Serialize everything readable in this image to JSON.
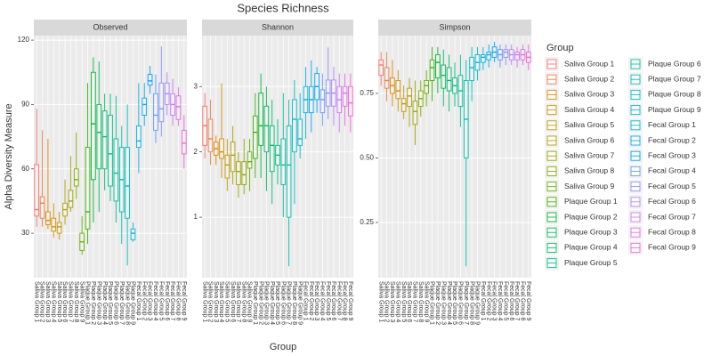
{
  "chart_data": {
    "type": "box",
    "title": "Species Richness",
    "xlabel": "Group",
    "ylabel": "Alpha Diversity Measure",
    "legend_title": "Group",
    "categories": [
      "Saliva Group 1",
      "Saliva Group 2",
      "Saliva Group 3",
      "Saliva Group 4",
      "Saliva Group 5",
      "Saliva Group 6",
      "Saliva Group 7",
      "Saliva Group 8",
      "Saliva Group 9",
      "Plaque Group 1",
      "Plaque Group 2",
      "Plaque Group 3",
      "Plaque Group 4",
      "Plaque Group 5",
      "Plaque Group 6",
      "Plaque Group 7",
      "Plaque Group 8",
      "Plaque Group 9",
      "Fecal Group 1",
      "Fecal Group 2",
      "Fecal Group 3",
      "Fecal Group 4",
      "Fecal Group 5",
      "Fecal Group 6",
      "Fecal Group 7",
      "Fecal Group 8",
      "Fecal Group 9"
    ],
    "colors": [
      "#F8766D",
      "#EE8043",
      "#E38900",
      "#D59100",
      "#C59900",
      "#B3A000",
      "#9FA600",
      "#87AC00",
      "#69B100",
      "#3BB600",
      "#00BA38",
      "#00BC59",
      "#00BE71",
      "#00C087",
      "#00C19C",
      "#00C0B0",
      "#00BEC3",
      "#00BBD4",
      "#00B5E4",
      "#00AEF2",
      "#00A5FE",
      "#619CFF",
      "#8F91FF",
      "#B385FF",
      "#D078F7",
      "#E66BE8",
      "#F564D6"
    ],
    "grid": true,
    "facets": [
      {
        "title": "Observed",
        "ylim": [
          9.3,
          122.1
        ],
        "yticks": [
          30,
          60,
          90,
          120
        ],
        "values": [
          [
            33,
            38,
            41,
            62,
            88
          ],
          [
            33,
            37,
            44,
            47,
            78
          ],
          [
            32,
            34,
            36,
            40,
            74
          ],
          [
            28,
            31,
            33,
            37,
            44
          ],
          [
            27,
            30,
            33,
            35,
            40
          ],
          [
            34,
            38,
            41,
            44,
            55
          ],
          [
            40,
            42,
            45,
            50,
            66
          ],
          [
            46,
            52,
            55,
            60,
            77
          ],
          [
            20,
            22,
            26,
            30,
            38
          ],
          [
            25,
            32,
            40,
            70,
            100
          ],
          [
            35,
            55,
            81,
            105,
            112
          ],
          [
            40,
            60,
            77,
            90,
            110
          ],
          [
            50,
            60,
            75,
            87,
            95
          ],
          [
            45,
            52,
            67,
            85,
            95
          ],
          [
            35,
            45,
            58,
            74,
            94
          ],
          [
            25,
            40,
            55,
            70,
            80
          ],
          [
            15,
            37,
            52,
            70,
            90
          ],
          [
            26,
            27,
            30,
            32,
            35
          ],
          [
            58,
            70,
            73,
            80,
            100
          ],
          [
            80,
            85,
            90,
            93,
            100
          ],
          [
            95,
            99,
            101,
            104,
            108
          ],
          [
            72,
            78,
            85,
            95,
            104
          ],
          [
            75,
            82,
            88,
            100,
            117
          ],
          [
            85,
            90,
            95,
            100,
            105
          ],
          [
            80,
            85,
            90,
            95,
            102
          ],
          [
            80,
            83,
            89,
            94,
            98
          ],
          [
            60,
            67,
            72,
            78,
            85
          ]
        ]
      },
      {
        "title": "Shannon",
        "ylim": [
          0.075,
          3.78
        ],
        "yticks": [
          1,
          2,
          3
        ],
        "values": [
          [
            1.9,
            2.1,
            2.4,
            2.7,
            2.9
          ],
          [
            1.8,
            2.0,
            2.2,
            2.5,
            2.8
          ],
          [
            1.8,
            1.95,
            2.05,
            2.15,
            2.25
          ],
          [
            1.6,
            1.9,
            2.0,
            2.2,
            3.05
          ],
          [
            1.4,
            1.6,
            1.8,
            1.95,
            2.2
          ],
          [
            1.5,
            1.7,
            1.95,
            2.15,
            2.4
          ],
          [
            1.3,
            1.5,
            1.7,
            1.85,
            2.0
          ],
          [
            1.35,
            1.5,
            1.65,
            1.85,
            2.2
          ],
          [
            1.4,
            1.75,
            1.85,
            2.0,
            2.2
          ],
          [
            1.6,
            1.9,
            2.3,
            2.55,
            2.9
          ],
          [
            1.6,
            2.1,
            2.4,
            2.9,
            3.2
          ],
          [
            1.4,
            2.0,
            2.4,
            2.7,
            3.0
          ],
          [
            1.2,
            1.7,
            2.1,
            2.4,
            2.8
          ],
          [
            1.5,
            1.8,
            1.95,
            2.1,
            2.5
          ],
          [
            1.0,
            1.5,
            1.8,
            2.2,
            2.9
          ],
          [
            0.25,
            1.0,
            1.8,
            2.4,
            2.8
          ],
          [
            1.2,
            2.0,
            2.5,
            2.8,
            3.1
          ],
          [
            1.9,
            2.1,
            2.2,
            2.5,
            2.9
          ],
          [
            2.2,
            2.6,
            2.8,
            3.0,
            3.3
          ],
          [
            2.3,
            2.6,
            2.8,
            3.0,
            3.4
          ],
          [
            2.6,
            2.8,
            3.0,
            3.2,
            3.3
          ],
          [
            2.4,
            2.6,
            2.8,
            2.95,
            3.2
          ],
          [
            2.5,
            2.7,
            2.9,
            3.1,
            3.6
          ],
          [
            2.4,
            2.7,
            2.9,
            3.1,
            3.3
          ],
          [
            2.3,
            2.6,
            2.8,
            3.0,
            3.2
          ],
          [
            2.4,
            2.7,
            2.9,
            3.0,
            3.2
          ],
          [
            2.3,
            2.55,
            2.75,
            3.0,
            3.2
          ]
        ]
      },
      {
        "title": "Simpson",
        "ylim": [
          0.036,
          0.974
        ],
        "yticks": [
          0.25,
          {
            "value": 0.5,
            "label": "0.50"
          },
          0.75
        ],
        "values": [
          [
            0.78,
            0.82,
            0.86,
            0.88,
            0.91
          ],
          [
            0.72,
            0.77,
            0.8,
            0.85,
            0.91
          ],
          [
            0.7,
            0.75,
            0.78,
            0.81,
            0.88
          ],
          [
            0.68,
            0.73,
            0.76,
            0.8,
            0.84
          ],
          [
            0.65,
            0.68,
            0.71,
            0.73,
            0.78
          ],
          [
            0.62,
            0.7,
            0.74,
            0.77,
            0.81
          ],
          [
            0.55,
            0.63,
            0.68,
            0.72,
            0.8
          ],
          [
            0.66,
            0.7,
            0.73,
            0.76,
            0.8
          ],
          [
            0.7,
            0.75,
            0.78,
            0.8,
            0.84
          ],
          [
            0.72,
            0.8,
            0.85,
            0.88,
            0.93
          ],
          [
            0.75,
            0.81,
            0.87,
            0.9,
            0.93
          ],
          [
            0.7,
            0.77,
            0.82,
            0.86,
            0.92
          ],
          [
            0.68,
            0.76,
            0.8,
            0.85,
            0.9
          ],
          [
            0.7,
            0.75,
            0.78,
            0.81,
            0.87
          ],
          [
            0.62,
            0.7,
            0.76,
            0.82,
            0.9
          ],
          [
            0.08,
            0.5,
            0.65,
            0.8,
            0.88
          ],
          [
            0.72,
            0.8,
            0.85,
            0.89,
            0.93
          ],
          [
            0.8,
            0.84,
            0.87,
            0.9,
            0.93
          ],
          [
            0.84,
            0.87,
            0.89,
            0.9,
            0.93
          ],
          [
            0.85,
            0.88,
            0.9,
            0.91,
            0.94
          ],
          [
            0.87,
            0.89,
            0.91,
            0.93,
            0.95
          ],
          [
            0.85,
            0.88,
            0.9,
            0.92,
            0.94
          ],
          [
            0.86,
            0.89,
            0.91,
            0.92,
            0.94
          ],
          [
            0.86,
            0.88,
            0.9,
            0.92,
            0.94
          ],
          [
            0.85,
            0.88,
            0.9,
            0.91,
            0.93
          ],
          [
            0.86,
            0.88,
            0.9,
            0.92,
            0.94
          ],
          [
            0.84,
            0.87,
            0.89,
            0.91,
            0.94
          ]
        ]
      }
    ]
  }
}
